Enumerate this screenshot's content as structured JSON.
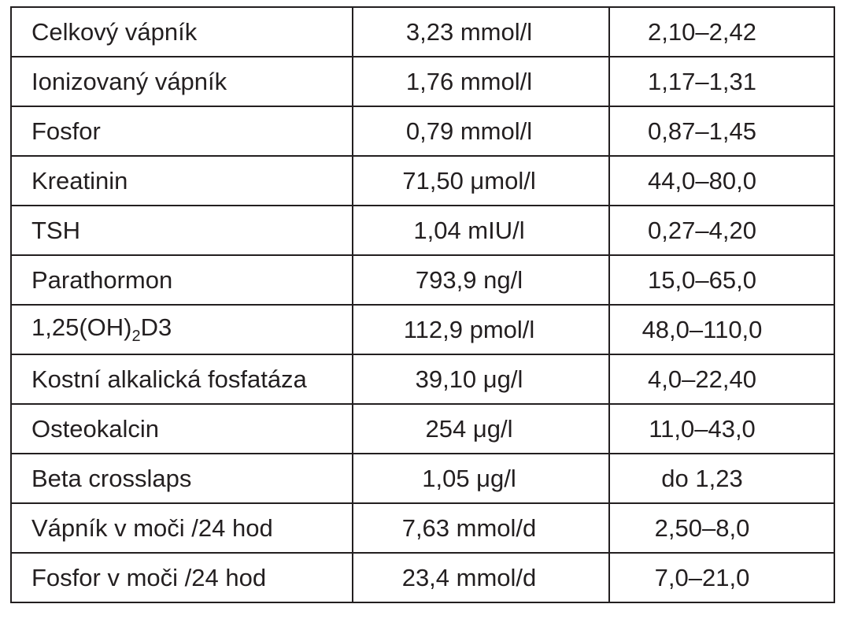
{
  "rows": [
    {
      "name": "Celkový vápník",
      "value": "3,23 mmol/l",
      "range": "2,10–2,42"
    },
    {
      "name": "Ionizovaný vápník",
      "value": "1,76 mmol/l",
      "range": "1,17–1,31"
    },
    {
      "name": "Fosfor",
      "value": "0,79 mmol/l",
      "range": "0,87–1,45"
    },
    {
      "name": "Kreatinin",
      "value": "71,50 μmol/l",
      "range": "44,0–80,0"
    },
    {
      "name": "TSH",
      "value": "1,04 mIU/l",
      "range": "0,27–4,20"
    },
    {
      "name": "Parathormon",
      "value": "793,9 ng/l",
      "range": "15,0–65,0"
    },
    {
      "name_prefix": "1,25(OH)",
      "name_sub": "2",
      "name_suffix": "D3",
      "value": "112,9 pmol/l",
      "range": "48,0–110,0"
    },
    {
      "name": "Kostní alkalická fosfatáza",
      "value": "39,10 μg/l",
      "range": "4,0–22,40"
    },
    {
      "name": "Osteokalcin",
      "value": "254 μg/l",
      "range": "11,0–43,0"
    },
    {
      "name": "Beta crosslaps",
      "value": "1,05 μg/l",
      "range": "do 1,23"
    },
    {
      "name": "Vápník v moči /24 hod",
      "value": "7,63 mmol/d",
      "range": "2,50–8,0"
    },
    {
      "name": "Fosfor v moči /24 hod",
      "value": "23,4 mmol/d",
      "range": "7,0–21,0"
    }
  ]
}
